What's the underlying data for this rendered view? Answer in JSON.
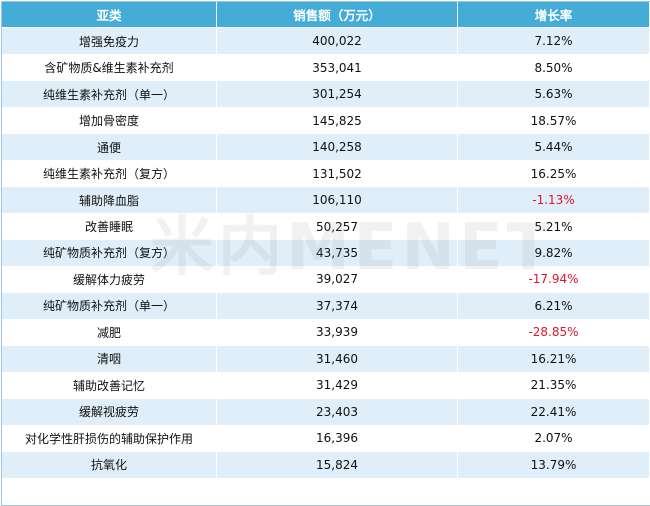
{
  "table": {
    "headers": [
      "亚类",
      "销售额（万元）",
      "增长率"
    ],
    "rows": [
      {
        "cat": "增强免疫力",
        "sales": "400,022",
        "growth": "7.12%",
        "neg": false
      },
      {
        "cat": "含矿物质&维生素补充剂",
        "sales": "353,041",
        "growth": "8.50%",
        "neg": false
      },
      {
        "cat": "纯维生素补充剂（单一）",
        "sales": "301,254",
        "growth": "5.63%",
        "neg": false
      },
      {
        "cat": "增加骨密度",
        "sales": "145,825",
        "growth": "18.57%",
        "neg": false
      },
      {
        "cat": "通便",
        "sales": "140,258",
        "growth": "5.44%",
        "neg": false
      },
      {
        "cat": "纯维生素补充剂（复方）",
        "sales": "131,502",
        "growth": "16.25%",
        "neg": false
      },
      {
        "cat": "辅助降血脂",
        "sales": "106,110",
        "growth": "-1.13%",
        "neg": true
      },
      {
        "cat": "改善睡眠",
        "sales": "50,257",
        "growth": "5.21%",
        "neg": false
      },
      {
        "cat": "纯矿物质补充剂（复方）",
        "sales": "43,735",
        "growth": "9.82%",
        "neg": false
      },
      {
        "cat": "缓解体力疲劳",
        "sales": "39,027",
        "growth": "-17.94%",
        "neg": true
      },
      {
        "cat": "纯矿物质补充剂（单一）",
        "sales": "37,374",
        "growth": "6.21%",
        "neg": false
      },
      {
        "cat": "减肥",
        "sales": "33,939",
        "growth": "-28.85%",
        "neg": true
      },
      {
        "cat": "清咽",
        "sales": "31,460",
        "growth": "16.21%",
        "neg": false
      },
      {
        "cat": "辅助改善记忆",
        "sales": "31,429",
        "growth": "21.35%",
        "neg": false
      },
      {
        "cat": "缓解视疲劳",
        "sales": "23,403",
        "growth": "22.41%",
        "neg": false
      },
      {
        "cat": "对化学性肝损伤的辅助保护作用",
        "sales": "16,396",
        "growth": "2.07%",
        "neg": false
      },
      {
        "cat": "抗氧化",
        "sales": "15,824",
        "growth": "13.79%",
        "neg": false
      }
    ]
  },
  "watermark": "米内MENET",
  "colors": {
    "header": "#45acd8",
    "stripe": "#dfeef8",
    "negative": "#e0162b"
  }
}
